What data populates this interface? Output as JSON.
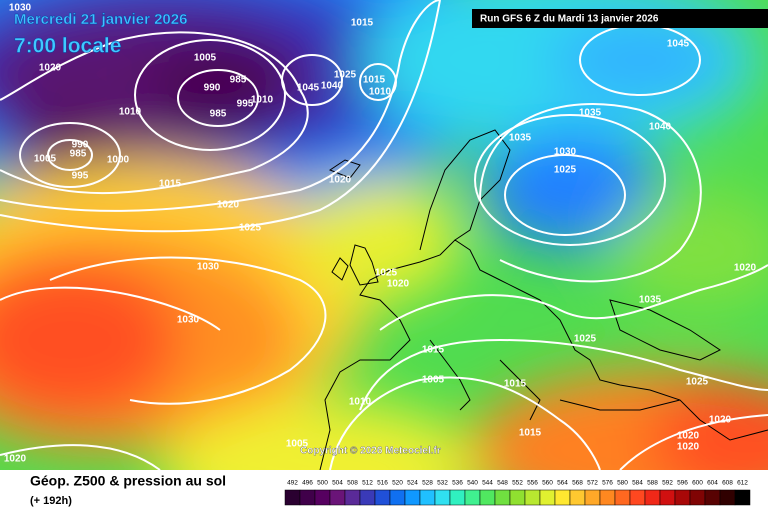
{
  "header": {
    "date": "Mercredi 21 janvier 2026",
    "time": "7:00 locale",
    "run": "Run GFS 6 Z du Mardi 13 janvier 2026"
  },
  "copyright": "Copyright © 2026 Meteociel.fr",
  "footer": {
    "title": "Géop. Z500 & pression au sol",
    "subtitle": "(+ 192h)"
  },
  "legend": {
    "values": [
      492,
      496,
      500,
      504,
      508,
      512,
      516,
      520,
      524,
      528,
      532,
      536,
      540,
      544,
      548,
      552,
      556,
      560,
      564,
      568,
      572,
      576,
      580,
      584,
      588,
      592,
      596,
      600,
      604,
      608,
      612
    ],
    "colors": [
      "#2a0030",
      "#40004a",
      "#560060",
      "#6a1478",
      "#5a2a98",
      "#3a3ab8",
      "#2050d8",
      "#1070f0",
      "#1098ff",
      "#20c0ff",
      "#30e0f0",
      "#30f0c0",
      "#40f090",
      "#50e860",
      "#70e040",
      "#90e030",
      "#b8e830",
      "#e0f030",
      "#ffe830",
      "#ffc830",
      "#ffa828",
      "#ff8820",
      "#ff6820",
      "#ff4820",
      "#f02818",
      "#d01010",
      "#a80808",
      "#800404",
      "#580202",
      "#300000",
      "#000000"
    ]
  },
  "isobars": [
    1030,
    1020,
    1005,
    985,
    990,
    995,
    985,
    1010,
    1010,
    990,
    985,
    1005,
    1000,
    995,
    1015,
    1020,
    1025,
    1015,
    1025,
    1015,
    1010,
    1045,
    1040,
    1035,
    1035,
    1030,
    1025,
    1040,
    1045,
    1020,
    1030,
    1030,
    1025,
    1020,
    1035,
    1025,
    1020,
    1015,
    1005,
    1015,
    1010,
    1025,
    1020,
    1015,
    1020,
    1020,
    1005,
    1020
  ]
}
